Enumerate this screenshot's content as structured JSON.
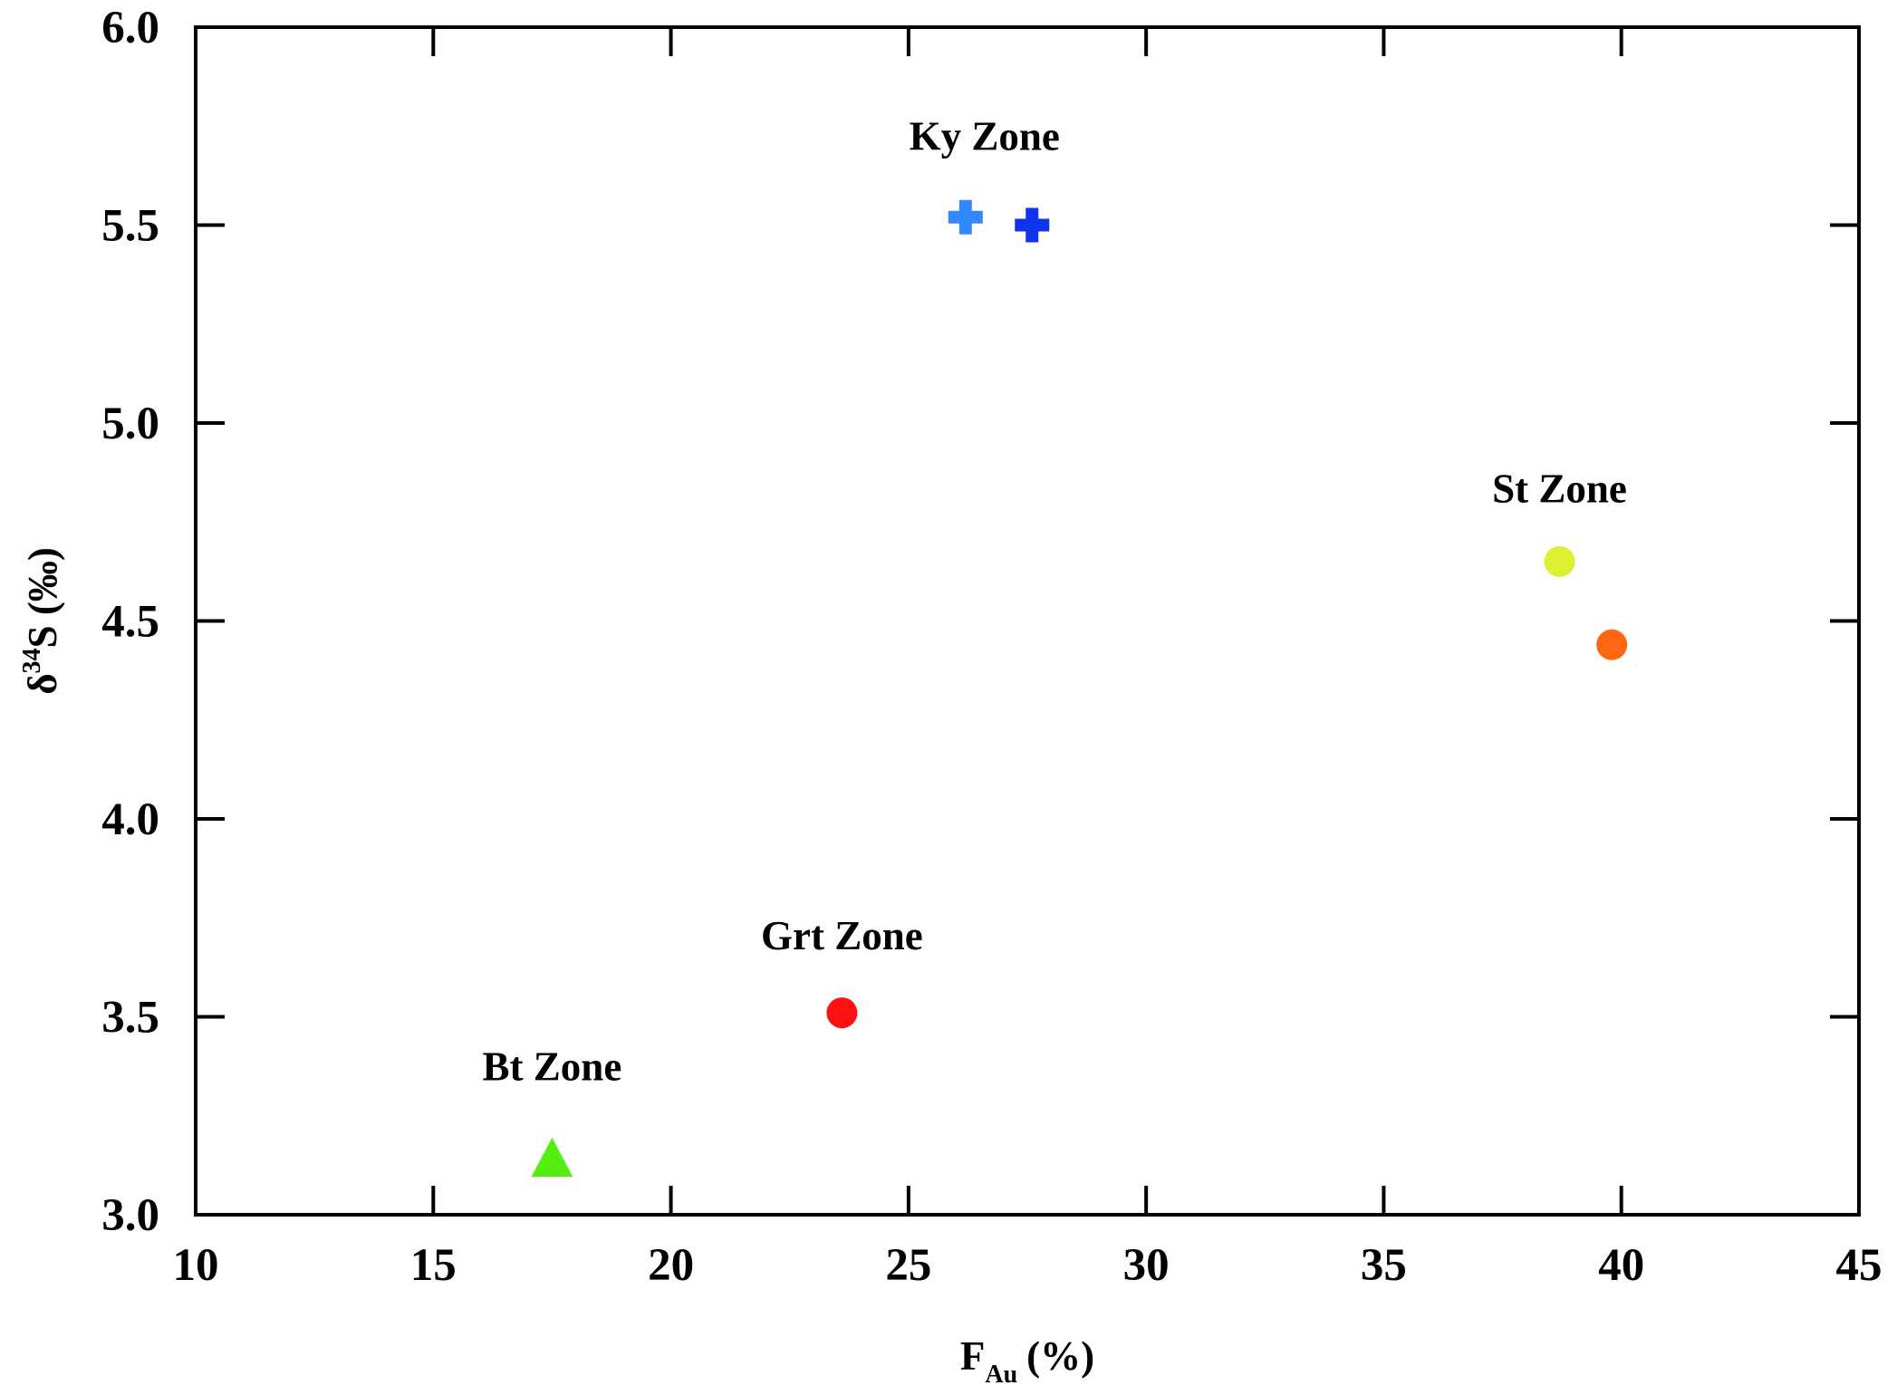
{
  "chart_data": {
    "type": "scatter",
    "x_axis": {
      "label_main": "F",
      "label_sub": "Au",
      "label_unit": "(%)",
      "min": 10,
      "max": 45,
      "ticks": [
        10,
        15,
        20,
        25,
        30,
        35,
        40,
        45
      ],
      "tick_labels": [
        "10",
        "15",
        "20",
        "25",
        "30",
        "35",
        "40",
        "45"
      ]
    },
    "y_axis": {
      "label_main": "δ",
      "label_sup": "34",
      "label_rest": "S (‰)",
      "min": 3.0,
      "max": 6.0,
      "ticks": [
        3.0,
        3.5,
        4.0,
        4.5,
        5.0,
        5.5,
        6.0
      ],
      "tick_labels": [
        "3.0",
        "3.5",
        "4.0",
        "4.5",
        "5.0",
        "5.5",
        "6.0"
      ]
    },
    "grid": false,
    "points": [
      {
        "zone": "Bt Zone",
        "x": 17.5,
        "y": 3.14,
        "marker": "triangle",
        "color": "#55ee11"
      },
      {
        "zone": "Grt Zone",
        "x": 23.6,
        "y": 3.51,
        "marker": "circle",
        "color": "#ff1111"
      },
      {
        "zone": "Ky Zone",
        "x": 26.2,
        "y": 5.52,
        "marker": "cross",
        "color": "#3388ff"
      },
      {
        "zone": "Ky Zone",
        "x": 27.6,
        "y": 5.5,
        "marker": "cross",
        "color": "#1133ee"
      },
      {
        "zone": "St Zone",
        "x": 38.7,
        "y": 4.65,
        "marker": "circle",
        "color": "#ddee33"
      },
      {
        "zone": "St Zone",
        "x": 39.8,
        "y": 4.44,
        "marker": "circle",
        "color": "#ff6611"
      }
    ],
    "annotations": [
      {
        "text": "Ky Zone",
        "x": 26.6,
        "y": 5.69
      },
      {
        "text": "St Zone",
        "x": 38.7,
        "y": 4.8
      },
      {
        "text": "Grt Zone",
        "x": 23.6,
        "y": 3.67
      },
      {
        "text": "Bt Zone",
        "x": 17.5,
        "y": 3.34
      }
    ]
  }
}
